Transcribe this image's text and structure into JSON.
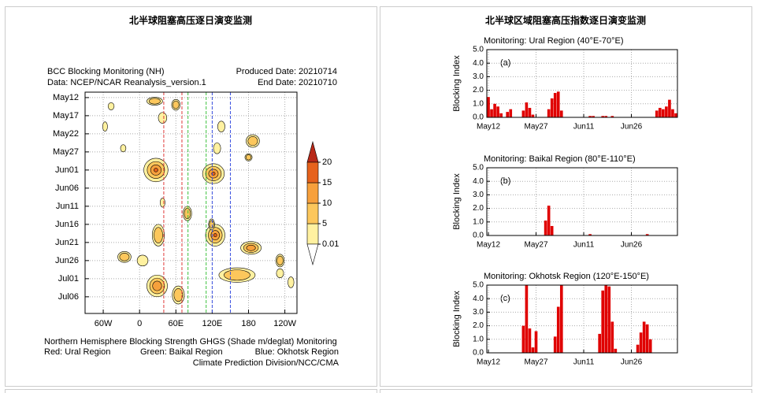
{
  "headers": [
    "北半球阻塞高压逐日演变监测",
    "北半球区域阻塞高压指数逐日演变监测"
  ],
  "chart_data": [
    {
      "type": "hovmoller",
      "title": "BCC Blocking Monitoring (NH)",
      "produced": "Produced Date: 20210714",
      "data_source": "Data: NCEP/NCAR Reanalysis_version.1",
      "end_date": "End Date: 20210710",
      "xlim": [
        -90,
        260
      ],
      "xticks": [
        {
          "value": -60,
          "label": "60W"
        },
        0,
        {
          "value": 60,
          "label": "60E"
        },
        {
          "value": 120,
          "label": "120E"
        },
        180,
        {
          "value": 240,
          "label": "120W"
        }
      ],
      "ylim": [
        -1.5,
        59.6
      ],
      "yticks": [
        {
          "value": 0,
          "label": "May12"
        },
        {
          "value": 5,
          "label": "May17"
        },
        {
          "value": 10,
          "label": "May22"
        },
        {
          "value": 15,
          "label": "May27"
        },
        {
          "value": 20,
          "label": "Jun01"
        },
        {
          "value": 25,
          "label": "Jun06"
        },
        {
          "value": 30,
          "label": "Jun11"
        },
        {
          "value": 35,
          "label": "Jun16"
        },
        {
          "value": 40,
          "label": "Jun21"
        },
        {
          "value": 45,
          "label": "Jun26"
        },
        {
          "value": 50,
          "label": "Jul01"
        },
        {
          "value": 55,
          "label": "Jul06"
        }
      ],
      "grid": true,
      "levels": [
        0.01,
        5,
        10,
        15,
        20
      ],
      "level_colors": [
        "#ffffff",
        "#fff1a0",
        "#fcc75c",
        "#f7a03c",
        "#e6621c",
        "#b82818"
      ],
      "blobs": [
        {
          "lon": 25,
          "day": 1,
          "dlon": 26,
          "dday": 2.2,
          "level": 5
        },
        {
          "lon": 60,
          "day": 2,
          "dlon": 14,
          "dday": 3,
          "level": 5
        },
        {
          "lon": -47,
          "day": 2.4,
          "dlon": 10,
          "dday": 2,
          "level": 0.01
        },
        {
          "lon": 38,
          "day": 5.6,
          "dlon": 14,
          "dday": 3,
          "level": 0.01
        },
        {
          "lon": -57,
          "day": 8,
          "dlon": 8,
          "dday": 2.6,
          "level": 0.01
        },
        {
          "lon": 135,
          "day": 8,
          "dlon": 12,
          "dday": 3,
          "level": 0.01
        },
        {
          "lon": -27,
          "day": 14,
          "dlon": 9,
          "dday": 2,
          "level": 0.01
        },
        {
          "lon": 128,
          "day": 14,
          "dlon": 12,
          "dday": 3,
          "level": 0.01
        },
        {
          "lon": 187,
          "day": 12,
          "dlon": 22,
          "dday": 3.5,
          "level": 5
        },
        {
          "lon": 27,
          "day": 20,
          "dlon": 40,
          "dday": 6.5,
          "level": 15
        },
        {
          "lon": 122,
          "day": 21,
          "dlon": 36,
          "dday": 5.5,
          "level": 15
        },
        {
          "lon": 180,
          "day": 16.5,
          "dlon": 12,
          "dday": 2,
          "level": 5
        },
        {
          "lon": 38,
          "day": 29,
          "dlon": 8,
          "dday": 2.5,
          "level": 0.01
        },
        {
          "lon": 79,
          "day": 32,
          "dlon": 14,
          "dday": 4,
          "level": 5
        },
        {
          "lon": 125,
          "day": 38,
          "dlon": 32,
          "dday": 6,
          "level": 15
        },
        {
          "lon": 184,
          "day": 41.5,
          "dlon": 34,
          "dday": 3.5,
          "level": 10
        },
        {
          "lon": 31,
          "day": 38,
          "dlon": 20,
          "dday": 6,
          "level": 5
        },
        {
          "lon": -25,
          "day": 44,
          "dlon": 22,
          "dday": 3,
          "level": 5
        },
        {
          "lon": 5,
          "day": 45,
          "dlon": 18,
          "dday": 3,
          "level": 0.01
        },
        {
          "lon": 161,
          "day": 49,
          "dlon": 60,
          "dday": 4,
          "level": 5
        },
        {
          "lon": 232,
          "day": 45,
          "dlon": 14,
          "dday": 3.5,
          "level": 5
        },
        {
          "lon": 29,
          "day": 52,
          "dlon": 34,
          "dday": 6,
          "level": 10
        },
        {
          "lon": 64,
          "day": 54.5,
          "dlon": 20,
          "dday": 5,
          "level": 5
        },
        {
          "lon": 119,
          "day": 35,
          "dlon": 10,
          "dday": 3,
          "level": 5
        },
        {
          "lon": 232,
          "day": 48.5,
          "dlon": 12,
          "dday": 2.5,
          "level": 0.01
        },
        {
          "lon": 250,
          "day": 51,
          "dlon": 10,
          "dday": 3,
          "level": 0.01
        }
      ],
      "regions": [
        {
          "label": "Red: Ural Region",
          "color": "#e03a3a",
          "lon": [
            40,
            70
          ]
        },
        {
          "label": "Green: Baikal Region",
          "color": "#3cc03c",
          "lon": [
            80,
            110
          ]
        },
        {
          "label": "Blue: Okhotsk Region",
          "color": "#3a50e0",
          "lon": [
            120,
            150
          ]
        }
      ],
      "footer": "Northern Hemisphere Blocking Strength GHGS (Shade m/deglat) Monitoring",
      "credit": "Climate Prediction Division/NCC/CMA"
    },
    {
      "type": "bar",
      "title": "Monitoring: Ural Region (40°E-70°E)",
      "panel": "(a)",
      "ylabel": "Blocking Index",
      "color": "#e00000",
      "categories": [
        "May12",
        null,
        null,
        null,
        null,
        null,
        null,
        null,
        null,
        null,
        null,
        null,
        null,
        null,
        null,
        "May27",
        null,
        null,
        null,
        null,
        null,
        null,
        null,
        null,
        null,
        null,
        null,
        null,
        null,
        null,
        "Jun11",
        null,
        null,
        null,
        null,
        null,
        null,
        null,
        null,
        null,
        null,
        null,
        null,
        null,
        null,
        "Jun26",
        null,
        null,
        null,
        null,
        null,
        null,
        null,
        null,
        null,
        null,
        null,
        null,
        null,
        null
      ],
      "values": [
        1.5,
        0.6,
        1.0,
        0.8,
        0.3,
        0,
        0.4,
        0.6,
        0,
        0,
        0,
        0.5,
        1.1,
        0.7,
        0.2,
        0,
        0,
        0,
        0,
        0.6,
        1.4,
        1.8,
        1.9,
        0.5,
        0,
        0,
        0,
        0,
        0,
        0,
        0,
        0,
        0.1,
        0.1,
        0,
        0,
        0.1,
        0.1,
        0,
        0.1,
        0,
        0,
        0,
        0,
        0,
        0,
        0,
        0,
        0,
        0,
        0,
        0,
        0,
        0.5,
        0.7,
        0.6,
        0.8,
        1.3,
        0.6,
        0.3
      ],
      "ylim": [
        0,
        5
      ],
      "yticks": [
        {
          "value": 0,
          "label": "0.0"
        },
        {
          "value": 1,
          "label": "1.0"
        },
        {
          "value": 2,
          "label": "2.0"
        },
        {
          "value": 3,
          "label": "3.0"
        },
        {
          "value": 4,
          "label": "4.0"
        },
        {
          "value": 5,
          "label": "5.0"
        }
      ],
      "grid": true
    },
    {
      "type": "bar",
      "title": "Monitoring: Baikal Region (80°E-110°E)",
      "panel": "(b)",
      "ylabel": "Blocking Index",
      "color": "#e00000",
      "categories": [
        "May12",
        null,
        null,
        null,
        null,
        null,
        null,
        null,
        null,
        null,
        null,
        null,
        null,
        null,
        null,
        "May27",
        null,
        null,
        null,
        null,
        null,
        null,
        null,
        null,
        null,
        null,
        null,
        null,
        null,
        null,
        "Jun11",
        null,
        null,
        null,
        null,
        null,
        null,
        null,
        null,
        null,
        null,
        null,
        null,
        null,
        null,
        "Jun26",
        null,
        null,
        null,
        null,
        null,
        null,
        null,
        null,
        null,
        null,
        null,
        null,
        null,
        null
      ],
      "values": [
        0,
        0,
        0,
        0,
        0,
        0,
        0,
        0,
        0,
        0,
        0,
        0,
        0,
        0,
        0,
        0,
        0,
        0,
        1.1,
        2.2,
        0.7,
        0,
        0,
        0,
        0,
        0,
        0,
        0,
        0,
        0,
        0,
        0,
        0.1,
        0,
        0,
        0,
        0,
        0,
        0,
        0,
        0,
        0,
        0,
        0,
        0,
        0,
        0,
        0,
        0,
        0,
        0.1,
        0,
        0,
        0,
        0,
        0,
        0,
        0,
        0,
        0
      ],
      "ylim": [
        0,
        5
      ],
      "yticks": [
        {
          "value": 0,
          "label": "0.0"
        },
        {
          "value": 1,
          "label": "1.0"
        },
        {
          "value": 2,
          "label": "2.0"
        },
        {
          "value": 3,
          "label": "3.0"
        },
        {
          "value": 4,
          "label": "4.0"
        },
        {
          "value": 5,
          "label": "5.0"
        }
      ],
      "grid": true
    },
    {
      "type": "bar",
      "title": "Monitoring: Okhotsk Region (120°E-150°E)",
      "panel": "(c)",
      "ylabel": "Blocking Index",
      "color": "#e00000",
      "categories": [
        "May12",
        null,
        null,
        null,
        null,
        null,
        null,
        null,
        null,
        null,
        null,
        null,
        null,
        null,
        null,
        "May27",
        null,
        null,
        null,
        null,
        null,
        null,
        null,
        null,
        null,
        null,
        null,
        null,
        null,
        null,
        "Jun11",
        null,
        null,
        null,
        null,
        null,
        null,
        null,
        null,
        null,
        null,
        null,
        null,
        null,
        null,
        "Jun26",
        null,
        null,
        null,
        null,
        null,
        null,
        null,
        null,
        null,
        null,
        null,
        null,
        null,
        null
      ],
      "values": [
        0,
        0,
        0,
        0,
        0,
        0,
        0,
        0,
        0,
        0,
        0,
        2.0,
        5.0,
        1.8,
        0.4,
        1.6,
        0,
        0,
        0,
        0,
        0,
        1.2,
        3.4,
        5.0,
        0,
        0,
        0,
        0,
        0,
        0,
        0,
        0,
        0,
        0,
        0,
        1.4,
        4.6,
        5.0,
        4.9,
        2.3,
        0.3,
        0,
        0,
        0,
        0,
        0,
        0,
        0.6,
        1.5,
        2.3,
        2.1,
        1.0,
        0,
        0,
        0,
        0,
        0,
        0,
        0,
        0
      ],
      "ylim": [
        0,
        5
      ],
      "yticks": [
        {
          "value": 0,
          "label": "0.0"
        },
        {
          "value": 1,
          "label": "1.0"
        },
        {
          "value": 2,
          "label": "2.0"
        },
        {
          "value": 3,
          "label": "3.0"
        },
        {
          "value": 4,
          "label": "4.0"
        },
        {
          "value": 5,
          "label": "5.0"
        }
      ],
      "grid": true
    }
  ]
}
